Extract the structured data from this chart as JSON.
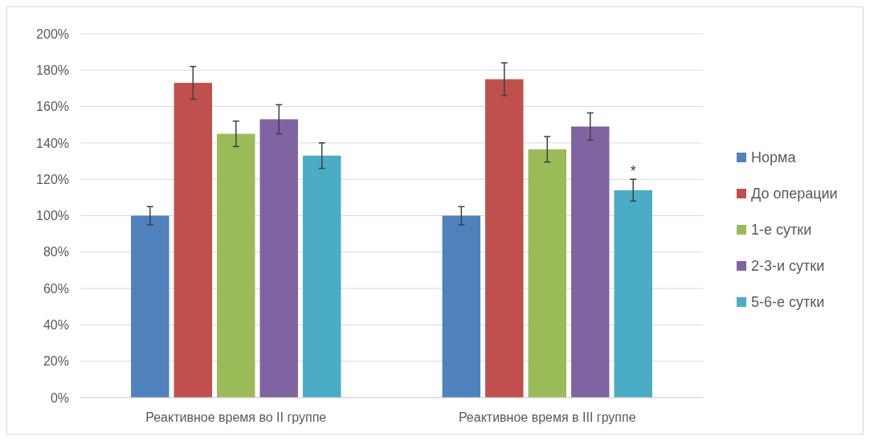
{
  "chart_data": {
    "type": "bar",
    "categories": [
      "Реактивное время во II группе",
      "Реактивное время в III группе"
    ],
    "series": [
      {
        "name": "Норма",
        "color": "#4f81bd",
        "values": [
          100,
          100
        ],
        "errors": [
          5,
          5
        ]
      },
      {
        "name": "До операции",
        "color": "#c0504d",
        "values": [
          173,
          175
        ],
        "errors": [
          9,
          9
        ]
      },
      {
        "name": "1-е сутки",
        "color": "#9bbb59",
        "values": [
          145,
          136.5
        ],
        "errors": [
          7,
          7
        ]
      },
      {
        "name": "2-3-и сутки",
        "color": "#8064a2",
        "values": [
          153,
          149
        ],
        "errors": [
          8,
          7.5
        ]
      },
      {
        "name": "5-6-е сутки",
        "color": "#4bacc6",
        "values": [
          133,
          114
        ],
        "errors": [
          7,
          6
        ]
      }
    ],
    "ylim": [
      0,
      200
    ],
    "yticks": [
      {
        "value": 0,
        "label": "0%"
      },
      {
        "value": 20,
        "label": "20%"
      },
      {
        "value": 40,
        "label": "40%"
      },
      {
        "value": 60,
        "label": "60%"
      },
      {
        "value": 80,
        "label": "80%"
      },
      {
        "value": 100,
        "label": "100%"
      },
      {
        "value": 120,
        "label": "120%"
      },
      {
        "value": 140,
        "label": "140%"
      },
      {
        "value": 160,
        "label": "160%"
      },
      {
        "value": 180,
        "label": "180%"
      },
      {
        "value": 200,
        "label": "200%"
      }
    ],
    "grid": "y",
    "legend": "right",
    "annotations": [
      "*"
    ]
  }
}
